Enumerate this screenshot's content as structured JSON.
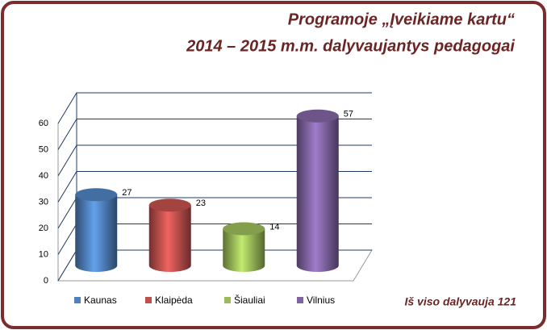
{
  "chart_data": {
    "type": "bar",
    "title": [
      "Programoje „Įveikiame kartu“",
      "2014 – 2015 m.m. dalyvaujantys pedagogai"
    ],
    "categories": [
      "Kaunas",
      "Klaipėda",
      "Šiauliai",
      "Vilnius"
    ],
    "series": [
      {
        "name": "Kaunas",
        "color": "#4f81bd"
      },
      {
        "name": "Klaipėda",
        "color": "#c0504d"
      },
      {
        "name": "Šiauliai",
        "color": "#9bbb59"
      },
      {
        "name": "Vilnius",
        "color": "#8064a2"
      }
    ],
    "values": [
      27,
      23,
      14,
      57
    ],
    "ylim": [
      0,
      60
    ],
    "yticks": [
      0,
      10,
      20,
      30,
      40,
      50,
      60
    ],
    "grid": true,
    "annotation": "Iš viso dalyvauja 121"
  }
}
